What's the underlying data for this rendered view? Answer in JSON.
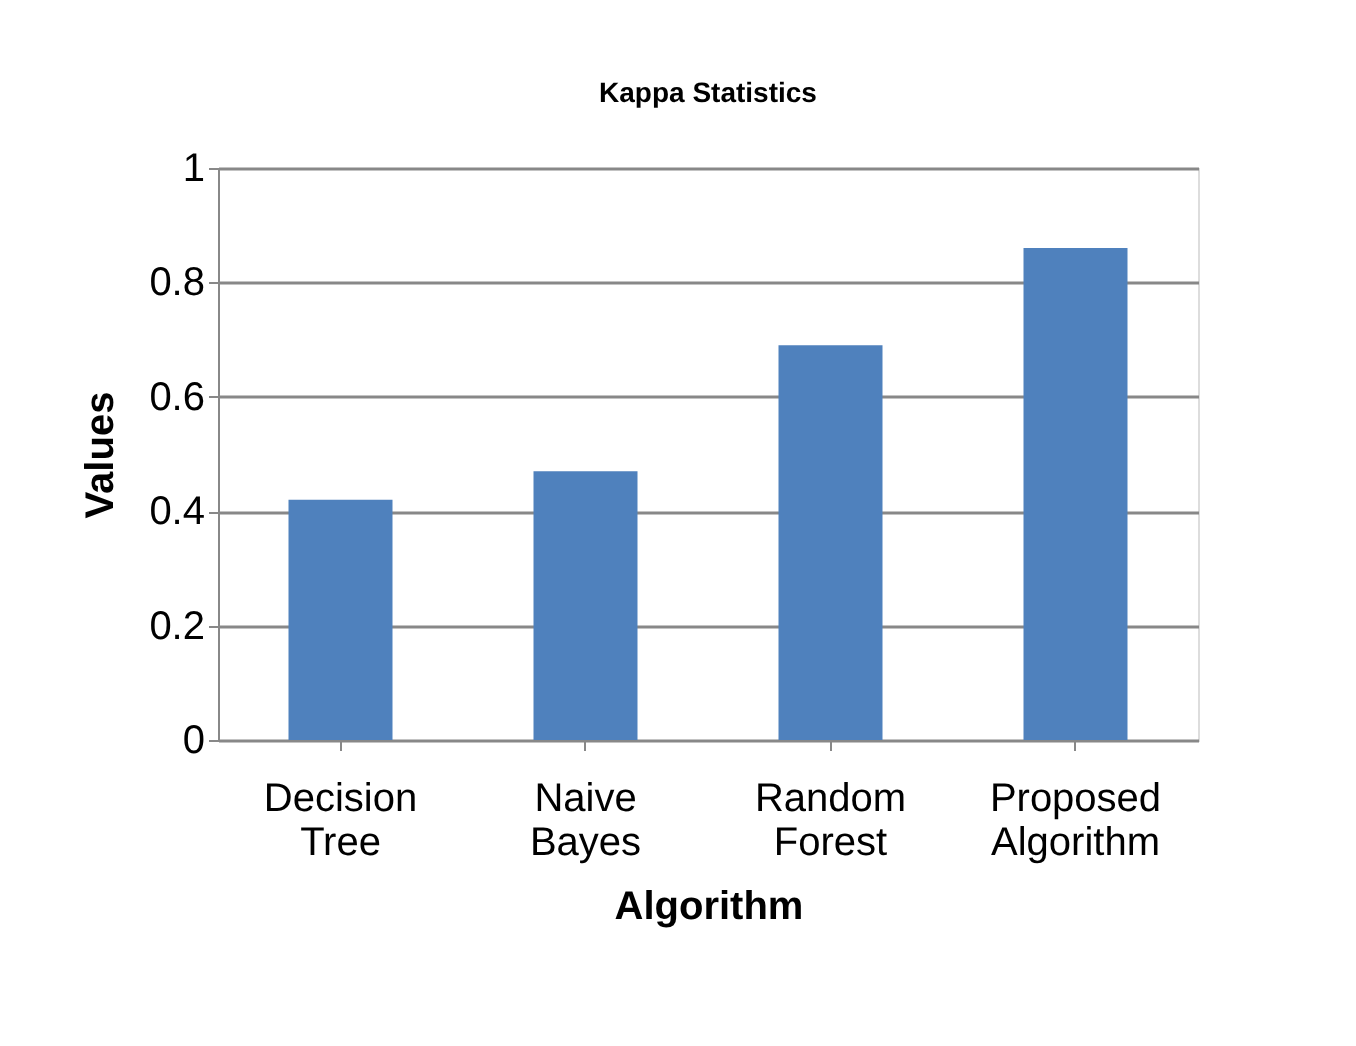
{
  "chart_data": {
    "type": "bar",
    "title": "Kappa Statistics",
    "xlabel": "Algorithm",
    "ylabel": "Values",
    "categories": [
      "Decision Tree",
      "Naive Bayes",
      "Random Forest",
      "Proposed Algorithm"
    ],
    "values": [
      0.42,
      0.47,
      0.69,
      0.86
    ],
    "color": "#4f81bd",
    "ylim": [
      0,
      1
    ],
    "yticks": [
      0,
      0.2,
      0.4,
      0.6,
      0.8,
      1
    ],
    "grid": "y"
  }
}
